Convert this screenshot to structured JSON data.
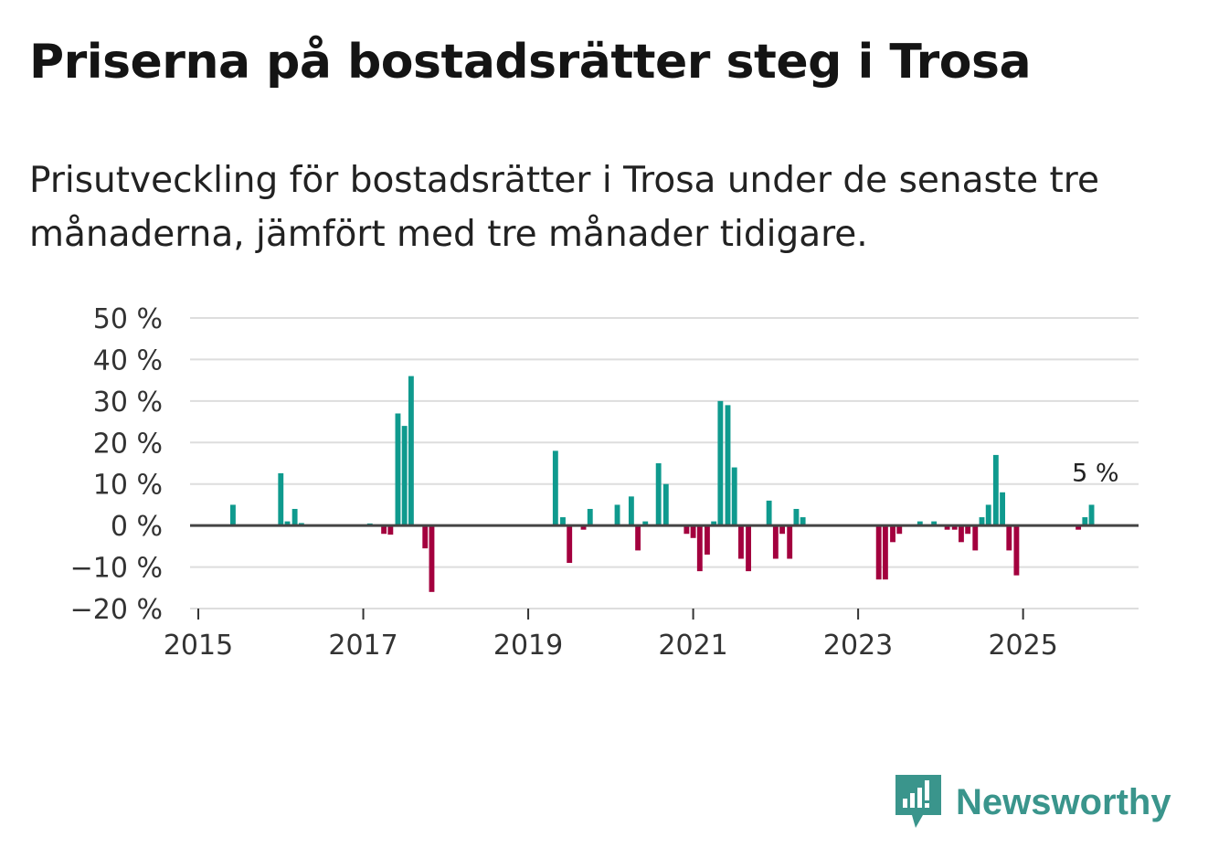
{
  "title": "Priserna på bostadsrätter steg i Trosa",
  "subtitle": "Prisutveckling för bostadsrätter i Trosa under de senaste tre månaderna, jämfört med tre månader tidigare.",
  "brand": {
    "name": "Newsworthy"
  },
  "colors": {
    "positive": "#0f9a8e",
    "negative": "#a3003e",
    "zero_line": "#444444",
    "grid": "#dddddd",
    "brand": "#3a958c"
  },
  "chart_data": {
    "type": "bar",
    "title": "Priserna på bostadsrätter steg i Trosa",
    "ylabel": "",
    "xlabel": "",
    "ylim": [
      -20,
      50
    ],
    "xlim": [
      2014.9,
      2026.4
    ],
    "y_ticks": [
      -20,
      -10,
      0,
      10,
      20,
      30,
      40,
      50
    ],
    "y_tick_labels": [
      "−20 %",
      "−10 %",
      "0 %",
      "10 %",
      "20 %",
      "30 %",
      "40 %",
      "50 %"
    ],
    "x_ticks": [
      2015,
      2017,
      2019,
      2021,
      2023,
      2025
    ],
    "x_tick_labels": [
      "2015",
      "2017",
      "2019",
      "2021",
      "2023",
      "2025"
    ],
    "annotation": {
      "text": "5 %",
      "x": 2025.9,
      "y": 5
    },
    "bars": [
      {
        "x": 2015.42,
        "y": 5
      },
      {
        "x": 2016.0,
        "y": 12.6
      },
      {
        "x": 2016.08,
        "y": 1
      },
      {
        "x": 2016.17,
        "y": 4
      },
      {
        "x": 2016.25,
        "y": 0.6
      },
      {
        "x": 2017.08,
        "y": 0.5
      },
      {
        "x": 2017.25,
        "y": -2
      },
      {
        "x": 2017.33,
        "y": -2.2
      },
      {
        "x": 2017.42,
        "y": 27
      },
      {
        "x": 2017.5,
        "y": 24
      },
      {
        "x": 2017.58,
        "y": 36
      },
      {
        "x": 2017.75,
        "y": -5.5
      },
      {
        "x": 2017.83,
        "y": -16
      },
      {
        "x": 2019.33,
        "y": 18
      },
      {
        "x": 2019.42,
        "y": 2
      },
      {
        "x": 2019.5,
        "y": -9
      },
      {
        "x": 2019.67,
        "y": -1
      },
      {
        "x": 2019.75,
        "y": 4
      },
      {
        "x": 2020.08,
        "y": 5
      },
      {
        "x": 2020.25,
        "y": 7
      },
      {
        "x": 2020.33,
        "y": -6
      },
      {
        "x": 2020.42,
        "y": 1
      },
      {
        "x": 2020.58,
        "y": 15
      },
      {
        "x": 2020.67,
        "y": 10
      },
      {
        "x": 2020.92,
        "y": -2
      },
      {
        "x": 2021.0,
        "y": -3
      },
      {
        "x": 2021.08,
        "y": -11
      },
      {
        "x": 2021.17,
        "y": -7
      },
      {
        "x": 2021.25,
        "y": 1
      },
      {
        "x": 2021.33,
        "y": 30
      },
      {
        "x": 2021.42,
        "y": 29
      },
      {
        "x": 2021.5,
        "y": 14
      },
      {
        "x": 2021.58,
        "y": -8
      },
      {
        "x": 2021.67,
        "y": -11
      },
      {
        "x": 2021.92,
        "y": 6
      },
      {
        "x": 2022.0,
        "y": -8
      },
      {
        "x": 2022.08,
        "y": -2
      },
      {
        "x": 2022.17,
        "y": -8
      },
      {
        "x": 2022.25,
        "y": 4
      },
      {
        "x": 2022.33,
        "y": 2
      },
      {
        "x": 2023.25,
        "y": -13
      },
      {
        "x": 2023.33,
        "y": -13
      },
      {
        "x": 2023.42,
        "y": -4
      },
      {
        "x": 2023.5,
        "y": -2
      },
      {
        "x": 2023.75,
        "y": 1
      },
      {
        "x": 2023.92,
        "y": 1
      },
      {
        "x": 2024.08,
        "y": -1
      },
      {
        "x": 2024.17,
        "y": -1
      },
      {
        "x": 2024.25,
        "y": -4
      },
      {
        "x": 2024.33,
        "y": -2
      },
      {
        "x": 2024.42,
        "y": -6
      },
      {
        "x": 2024.5,
        "y": 2
      },
      {
        "x": 2024.58,
        "y": 5
      },
      {
        "x": 2024.67,
        "y": 17
      },
      {
        "x": 2024.75,
        "y": 8
      },
      {
        "x": 2024.83,
        "y": -6
      },
      {
        "x": 2024.92,
        "y": -12
      },
      {
        "x": 2025.67,
        "y": -1
      },
      {
        "x": 2025.75,
        "y": 2
      },
      {
        "x": 2025.83,
        "y": 5
      }
    ]
  }
}
